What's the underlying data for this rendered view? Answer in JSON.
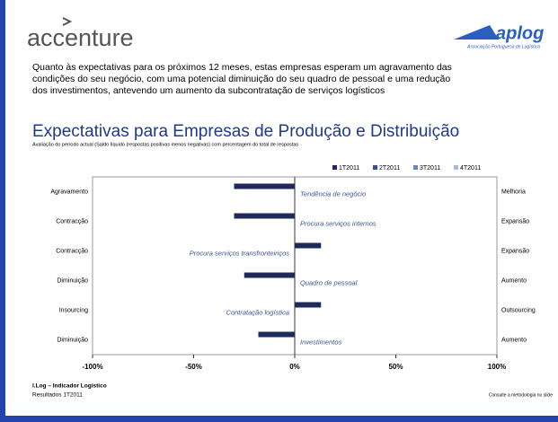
{
  "header": {
    "logo": "accenture",
    "partner": "aplog",
    "partner_sub": "Associação Portuguesa de Logística"
  },
  "intro": [
    "Quanto às expectativas para os próximos 12 meses, estas empresas esperam um agravamento das",
    "condições do seu negócio, com uma potencial diminuição do seu quadro de pessoal e uma redução",
    "dos investimentos, antevendo um aumento da subcontratação de serviços logísticos"
  ],
  "chart_data": {
    "type": "hbar",
    "title": "Expectativas para Empresas de Produção e Distribuição",
    "subtitle": "Avaliação do período actual (Saldo líquido (respostas positivas menos negativas) com percentagem do total de respostas",
    "categories": [
      "Tendência de negócio",
      "Procura serviços internos",
      "Procura serviços transfronteiriços",
      "Quadro de pessoal",
      "Contratação logística",
      "Investimentos"
    ],
    "left_labels": [
      "Agravamento",
      "Contracção",
      "Contracção",
      "Diminuição",
      "Insourcing",
      "Diminuição"
    ],
    "right_labels": [
      "Melhoria",
      "Expansão",
      "Expansão",
      "Aumento",
      "Outsourcing",
      "Aumento"
    ],
    "series": [
      {
        "name": "1T2011",
        "color": "#1f2a5a",
        "values": [
          -30,
          -30,
          13,
          -25,
          13,
          -18
        ]
      },
      {
        "name": "2T2011",
        "color": "#3a4f8f",
        "values": [
          null,
          null,
          null,
          null,
          null,
          null
        ]
      },
      {
        "name": "3T2011",
        "color": "#6f84b8",
        "values": [
          null,
          null,
          null,
          null,
          null,
          null
        ]
      },
      {
        "name": "4T2011",
        "color": "#a9b8d8",
        "values": [
          null,
          null,
          null,
          null,
          null,
          null
        ]
      }
    ],
    "xlim": [
      -100,
      100
    ],
    "xticks": [
      {
        "value": -100,
        "label": "-100%"
      },
      {
        "value": -50,
        "label": "-50%"
      },
      {
        "value": 0,
        "label": "0%"
      },
      {
        "value": 50,
        "label": "50%"
      },
      {
        "value": 100,
        "label": "100%"
      }
    ]
  },
  "footer": {
    "line1": "I.Log – Indicador Logístico",
    "line2": "Resultados 1T2011",
    "note": "Consulte a metodologia no slide"
  }
}
